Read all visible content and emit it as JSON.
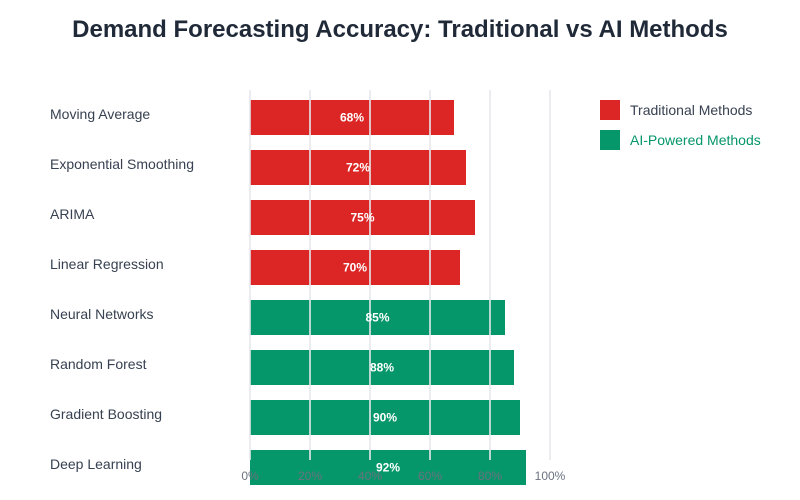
{
  "chart_data": {
    "type": "bar",
    "orientation": "horizontal",
    "title": "Demand Forecasting Accuracy: Traditional vs AI Methods",
    "categories": [
      "Moving Average",
      "Exponential Smoothing",
      "ARIMA",
      "Linear Regression",
      "Neural Networks",
      "Random Forest",
      "Gradient Boosting",
      "Deep Learning"
    ],
    "values": [
      68,
      72,
      75,
      70,
      85,
      88,
      90,
      92
    ],
    "groups": [
      "Traditional Methods",
      "Traditional Methods",
      "Traditional Methods",
      "Traditional Methods",
      "AI-Powered Methods",
      "AI-Powered Methods",
      "AI-Powered Methods",
      "AI-Powered Methods"
    ],
    "data_labels": [
      "68%",
      "72%",
      "75%",
      "70%",
      "85%",
      "88%",
      "90%",
      "92%"
    ],
    "xlim": [
      0,
      100
    ],
    "xticks": [
      "0%",
      "20%",
      "40%",
      "60%",
      "80%",
      "100%"
    ],
    "grid": true,
    "legend": {
      "placement": "right",
      "entries": [
        {
          "name": "Traditional Methods",
          "color": "#dc2626",
          "text_color": "#374151"
        },
        {
          "name": "AI-Powered Methods",
          "color": "#059669",
          "text_color": "#059669"
        }
      ]
    }
  }
}
